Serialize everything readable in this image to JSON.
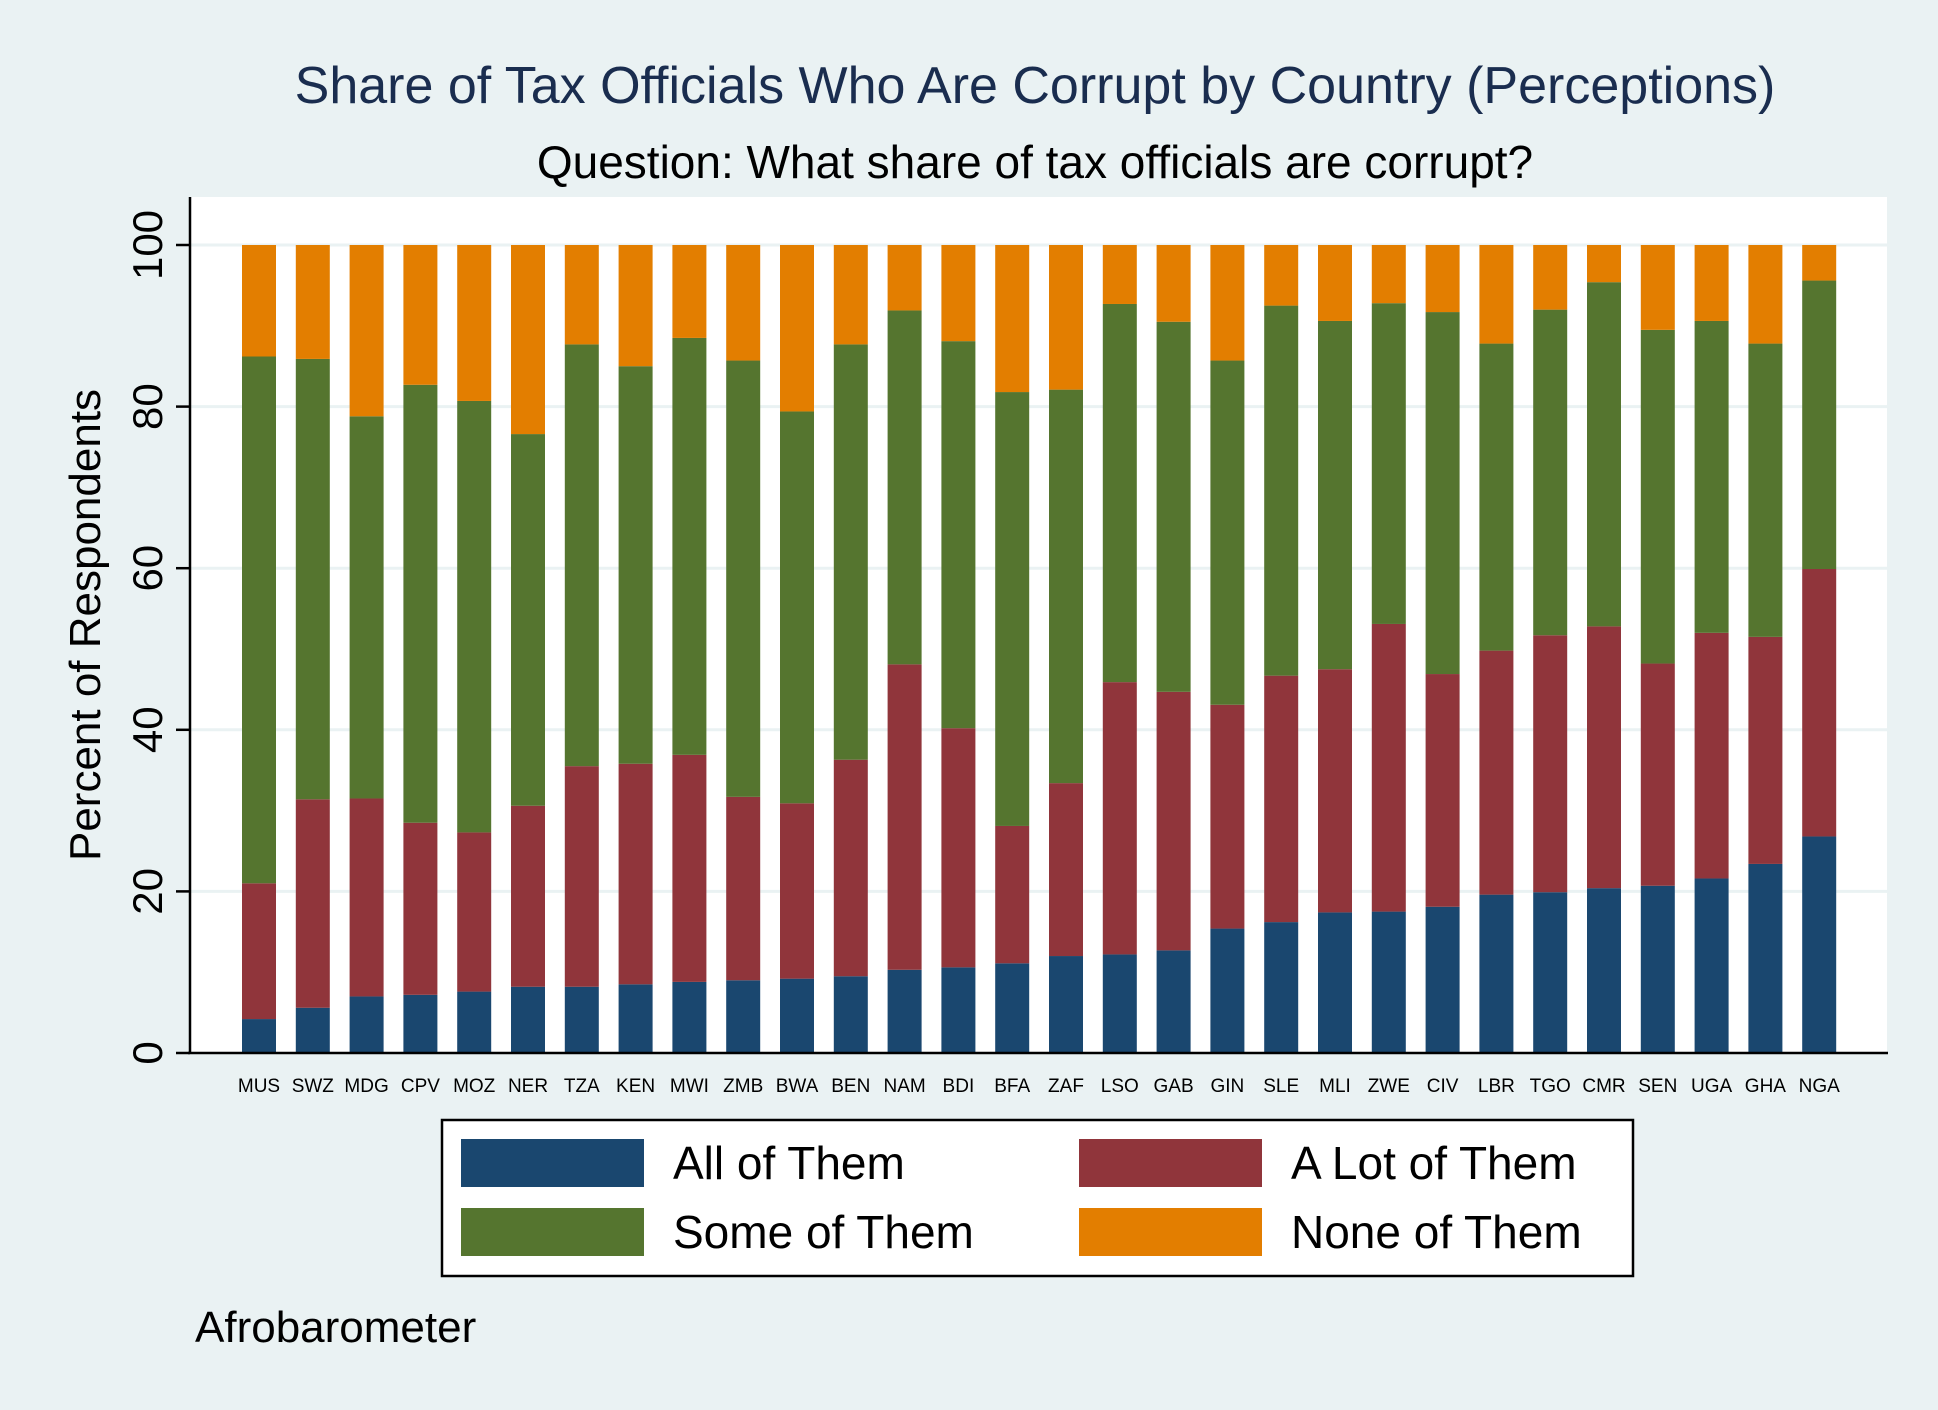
{
  "chart_data": {
    "type": "bar",
    "stacked": true,
    "title": "Share of Tax Officials Who Are Corrupt by Country (Perceptions)",
    "subtitle": "Question: What share of tax officials are corrupt?",
    "ylabel": "Percent of Respondents",
    "xlabel": "",
    "ylim": [
      0,
      100
    ],
    "yticks": [
      0,
      20,
      40,
      60,
      80,
      100
    ],
    "grid": true,
    "legend_position": "bottom",
    "note": "Afrobarometer",
    "categories": [
      "MUS",
      "SWZ",
      "MDG",
      "CPV",
      "MOZ",
      "NER",
      "TZA",
      "KEN",
      "MWI",
      "ZMB",
      "BWA",
      "BEN",
      "NAM",
      "BDI",
      "BFA",
      "ZAF",
      "LSO",
      "GAB",
      "GIN",
      "SLE",
      "MLI",
      "ZWE",
      "CIV",
      "LBR",
      "TGO",
      "CMR",
      "SEN",
      "UGA",
      "GHA",
      "NGA"
    ],
    "series": [
      {
        "name": "All of Them",
        "color": "#1a476f",
        "values": [
          4.2,
          5.6,
          7.0,
          7.2,
          7.6,
          8.2,
          8.2,
          8.5,
          8.8,
          9.0,
          9.2,
          9.5,
          10.3,
          10.6,
          11.1,
          12.0,
          12.2,
          12.7,
          15.4,
          16.2,
          17.4,
          17.5,
          18.1,
          19.6,
          19.9,
          20.4,
          20.7,
          21.6,
          23.4,
          26.8
        ]
      },
      {
        "name": "A Lot of Them",
        "color": "#90353b",
        "values": [
          16.8,
          25.8,
          24.5,
          21.3,
          19.7,
          22.4,
          27.3,
          27.3,
          28.1,
          22.7,
          21.7,
          26.8,
          37.8,
          29.6,
          17.0,
          21.4,
          33.7,
          32.0,
          27.7,
          30.5,
          30.1,
          35.6,
          28.8,
          30.2,
          31.8,
          32.4,
          27.5,
          30.4,
          28.1,
          33.1
        ]
      },
      {
        "name": "Some of Them",
        "color": "#55752f",
        "values": [
          65.2,
          54.5,
          47.3,
          54.2,
          53.4,
          46.0,
          52.2,
          49.2,
          51.6,
          54.0,
          48.5,
          51.4,
          43.8,
          47.9,
          53.7,
          48.7,
          46.8,
          45.8,
          42.6,
          45.8,
          43.1,
          39.7,
          44.8,
          38.0,
          40.3,
          42.6,
          41.3,
          38.6,
          36.3,
          35.7
        ]
      },
      {
        "name": "None of Them",
        "color": "#e37e00",
        "values": [
          13.8,
          14.1,
          21.2,
          17.3,
          19.3,
          23.4,
          12.3,
          15.0,
          11.5,
          14.3,
          20.6,
          12.3,
          8.1,
          11.9,
          18.2,
          17.9,
          7.3,
          9.5,
          14.3,
          7.5,
          9.4,
          7.2,
          8.3,
          12.2,
          8.0,
          4.6,
          10.5,
          9.4,
          12.2,
          4.4
        ]
      }
    ]
  }
}
